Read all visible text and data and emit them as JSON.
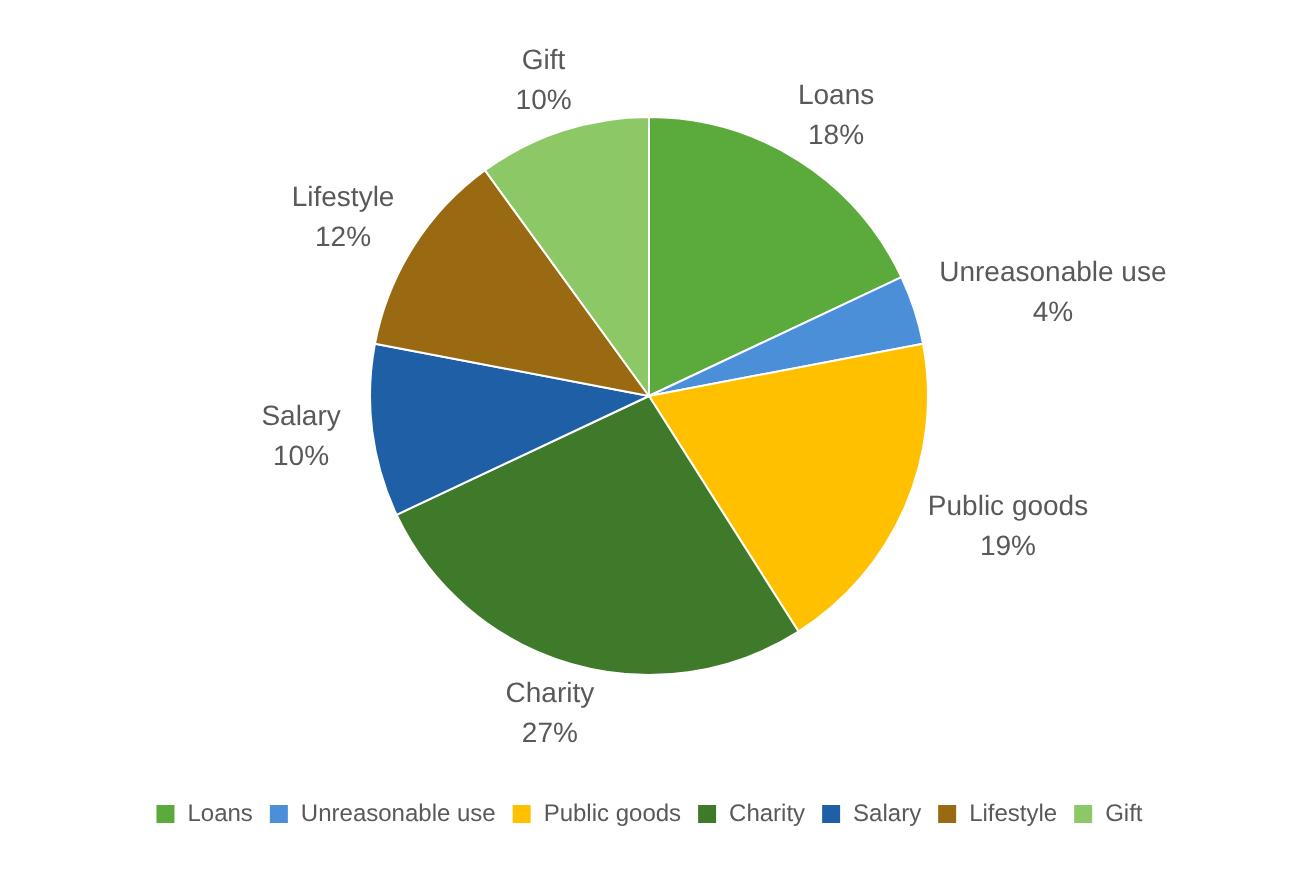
{
  "chart_data": {
    "type": "pie",
    "categories": [
      "Loans",
      "Unreasonable use",
      "Public goods",
      "Charity",
      "Salary",
      "Lifestyle",
      "Gift"
    ],
    "values": [
      18,
      4,
      19,
      27,
      10,
      12,
      10
    ],
    "value_labels": [
      "18%",
      "4%",
      "19%",
      "27%",
      "10%",
      "12%",
      "10%"
    ],
    "colors": [
      "#5aaa3c",
      "#4a8fd8",
      "#ffc000",
      "#3f7a2a",
      "#1f5fa6",
      "#9a6a12",
      "#8cc865"
    ],
    "legend": "bottom"
  }
}
